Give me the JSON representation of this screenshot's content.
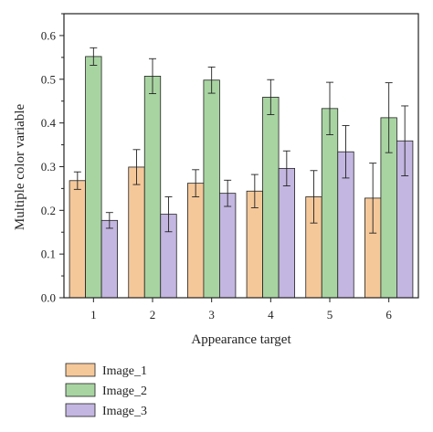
{
  "chart_data": {
    "type": "bar",
    "xlabel": "Appearance target",
    "ylabel": "Multiple color variable",
    "categories": [
      "1",
      "2",
      "3",
      "4",
      "5",
      "6"
    ],
    "ylim": [
      0,
      0.65
    ],
    "yticks": [
      "0.0",
      "0.1",
      "0.2",
      "0.3",
      "0.4",
      "0.5",
      "0.6"
    ],
    "grid": false,
    "legend_position": "bottom-left",
    "series": [
      {
        "name": "Image_1",
        "color": "#f5c89a",
        "values": [
          0.268,
          0.299,
          0.262,
          0.244,
          0.231,
          0.228
        ],
        "errors": [
          0.02,
          0.04,
          0.031,
          0.038,
          0.06,
          0.08
        ]
      },
      {
        "name": "Image_2",
        "color": "#a8d4a2",
        "values": [
          0.552,
          0.507,
          0.498,
          0.459,
          0.433,
          0.412
        ],
        "errors": [
          0.02,
          0.04,
          0.03,
          0.04,
          0.06,
          0.08
        ]
      },
      {
        "name": "Image_3",
        "color": "#c3b6e0",
        "values": [
          0.177,
          0.191,
          0.239,
          0.296,
          0.334,
          0.359
        ],
        "errors": [
          0.018,
          0.04,
          0.03,
          0.04,
          0.06,
          0.08
        ]
      }
    ]
  }
}
